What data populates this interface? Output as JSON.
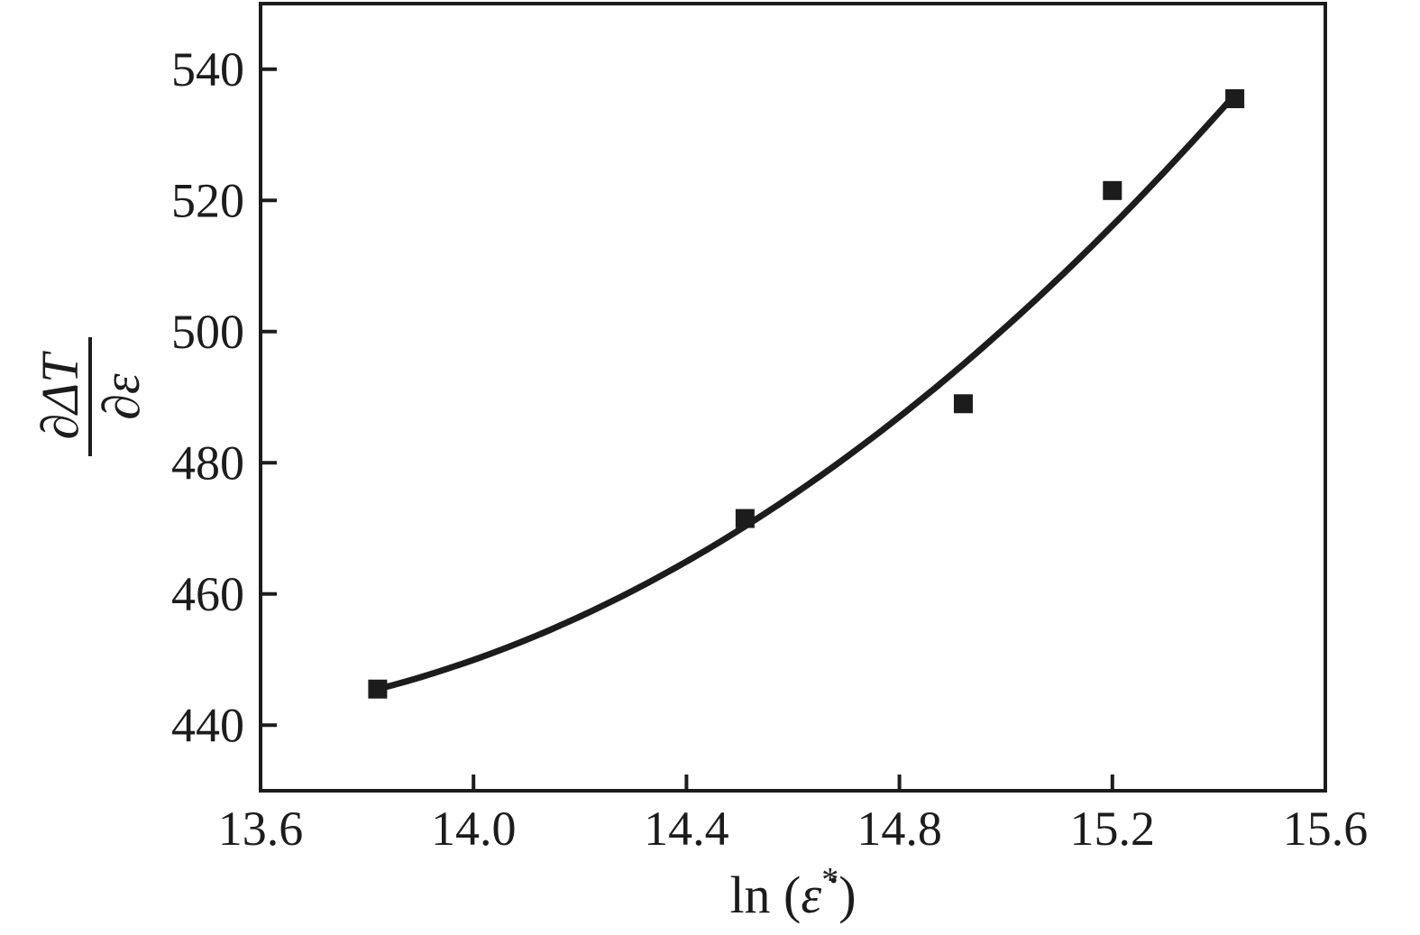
{
  "figure": {
    "background": "#ffffff"
  },
  "chart_data": {
    "type": "scatter",
    "title": "",
    "xlabel": {
      "full": "ln (ε̇*)",
      "prefix": "ln (",
      "symbol": "ε̇",
      "superscript": "*",
      "suffix": ")"
    },
    "ylabel": {
      "full": "∂ΔT/∂ε",
      "numerator": "∂ΔT",
      "denominator": "∂ε"
    },
    "xlim": [
      13.6,
      15.6
    ],
    "ylim": [
      430,
      550
    ],
    "xticks": [
      {
        "value": 13.6,
        "label": "13.6"
      },
      {
        "value": 14.0,
        "label": "14.0"
      },
      {
        "value": 14.4,
        "label": "14.4"
      },
      {
        "value": 14.8,
        "label": "14.8"
      },
      {
        "value": 15.2,
        "label": "15.2"
      },
      {
        "value": 15.6,
        "label": "15.6"
      }
    ],
    "yticks": [
      {
        "value": 440,
        "label": "440"
      },
      {
        "value": 460,
        "label": "460"
      },
      {
        "value": 480,
        "label": "480"
      },
      {
        "value": 500,
        "label": "500"
      },
      {
        "value": 520,
        "label": "520"
      },
      {
        "value": 540,
        "label": "540"
      }
    ],
    "grid": false,
    "legend": null,
    "colors": {
      "axis": "#1c1c1c",
      "marker": "#1c1c1c",
      "line": "#1c1c1c",
      "background": "#ffffff"
    },
    "series": [
      {
        "name": "measured-points",
        "type": "scatter",
        "marker": "filled-square",
        "points": [
          {
            "x": 13.82,
            "y": 445.5
          },
          {
            "x": 14.51,
            "y": 471.5
          },
          {
            "x": 14.92,
            "y": 489.0
          },
          {
            "x": 15.2,
            "y": 521.5
          },
          {
            "x": 15.43,
            "y": 535.5
          }
        ]
      },
      {
        "name": "fit-curve",
        "type": "line",
        "fit": {
          "form": "quadratic",
          "t_origin": 13.82,
          "c0": 445.5,
          "c1": 20.7,
          "c2": 22.1,
          "domain": [
            13.82,
            15.43
          ]
        }
      }
    ]
  }
}
